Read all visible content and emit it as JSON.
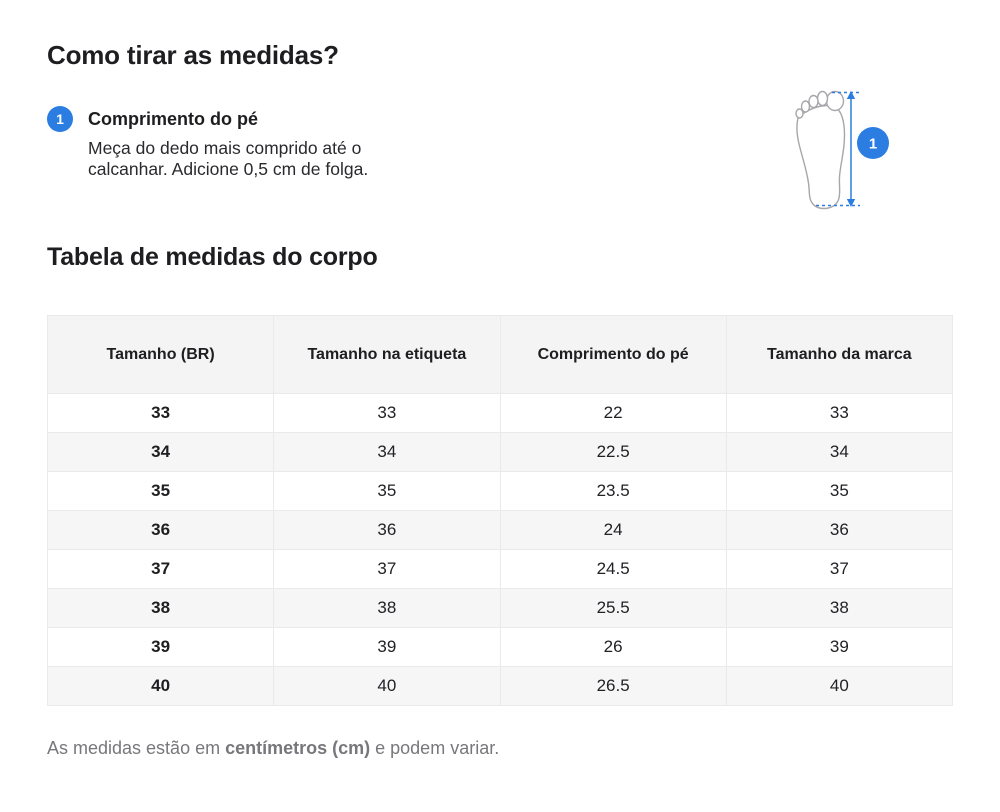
{
  "page": {
    "title": "Como tirar as medidas?",
    "section_title": "Tabela de medidas do corpo",
    "footnote": {
      "prefix": "As medidas estão em ",
      "bold": "centímetros (cm)",
      "suffix": " e podem variar."
    }
  },
  "step": {
    "number": "1",
    "label": "Comprimento do pé",
    "description": "Meça do dedo mais comprido até o\ncalcanhar. Adicione 0,5 cm de folga."
  },
  "illustration": {
    "icon": "foot-sole-with-length-arrow",
    "badge": "1"
  },
  "table": {
    "headers": [
      "Tamanho (BR)",
      "Tamanho na etiqueta",
      "Comprimento do pé",
      "Tamanho da marca"
    ],
    "rows": [
      [
        "33",
        "33",
        "22",
        "33"
      ],
      [
        "34",
        "34",
        "22.5",
        "34"
      ],
      [
        "35",
        "35",
        "23.5",
        "35"
      ],
      [
        "36",
        "36",
        "24",
        "36"
      ],
      [
        "37",
        "37",
        "24.5",
        "37"
      ],
      [
        "38",
        "38",
        "25.5",
        "38"
      ],
      [
        "39",
        "39",
        "26",
        "39"
      ],
      [
        "40",
        "40",
        "26.5",
        "40"
      ]
    ]
  },
  "colors": {
    "accent": "#2b7de1",
    "heading_text": "#1e1e21",
    "muted_text": "#77777c",
    "table_header_bg": "#f4f4f4",
    "table_alt_row_bg": "#f6f6f7",
    "table_border": "#eaeaec",
    "foot_outline": "#a6a6ab"
  }
}
